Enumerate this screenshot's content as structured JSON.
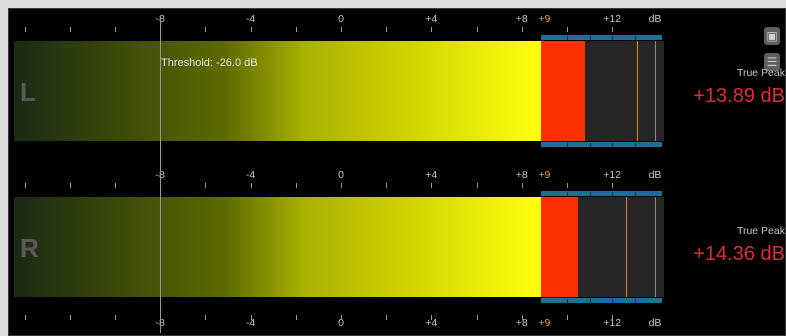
{
  "scale": {
    "ticks": [
      {
        "label": "-8",
        "value": -8
      },
      {
        "label": "-4",
        "value": -4
      },
      {
        "label": "0",
        "value": 0
      },
      {
        "label": "+4",
        "value": 4
      },
      {
        "label": "+8",
        "value": 8
      },
      {
        "label": "+9",
        "value": 9,
        "color": "#f0a020"
      },
      {
        "label": "+12",
        "value": 12
      }
    ],
    "unit": "dB"
  },
  "threshold_text": "Threshold: -26.0 dB",
  "channels": [
    {
      "label": "L",
      "true_peak_caption": "True Peak",
      "true_peak_value": "+13.89 dB",
      "fill_to_db": 10.8,
      "orange_marker_db": 13.1
    },
    {
      "label": "R",
      "true_peak_caption": "True Peak",
      "true_peak_value": "+14.36 dB",
      "fill_to_db": 10.5,
      "orange_marker_db": 12.6
    }
  ],
  "colors": {
    "accent_red": "#ff3000",
    "true_peak_text": "#e02838",
    "warning_orange": "#f0a020",
    "zone_blue": "#1e6e96",
    "bar_gradient": [
      "#1a2a14",
      "#5e6a00",
      "#a8b000",
      "#d8d800",
      "#ffff10"
    ]
  },
  "icons": {
    "top": "mode-icon",
    "bottom": "settings-icon"
  }
}
